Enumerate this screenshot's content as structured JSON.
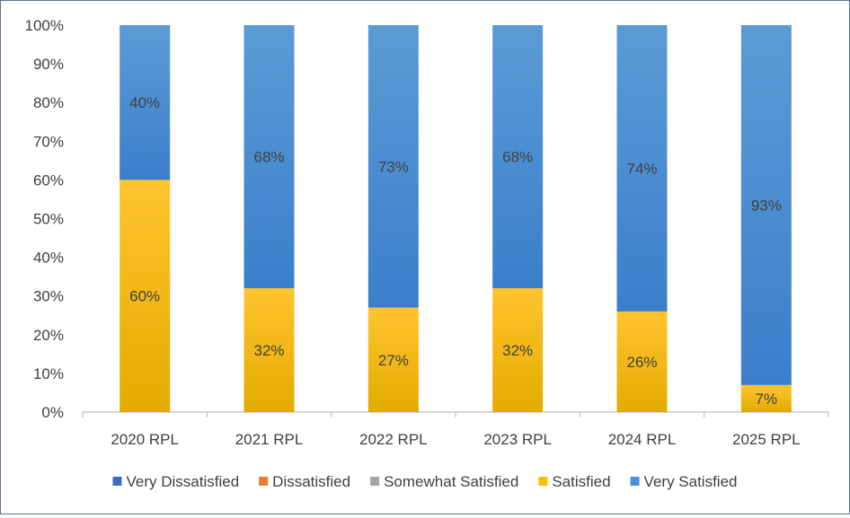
{
  "chart_data": {
    "type": "bar",
    "stacked": true,
    "categories": [
      "2020 RPL",
      "2021 RPL",
      "2022 RPL",
      "2023 RPL",
      "2024 RPL",
      "2025 RPL"
    ],
    "series": [
      {
        "name": "Very Dissatisfied",
        "color": "#3e6cc0",
        "values": [
          0,
          0,
          0,
          0,
          0,
          0
        ],
        "labels": [
          "",
          "",
          "",
          "",
          "",
          ""
        ]
      },
      {
        "name": "Dissatisfied",
        "color": "#ed7d31",
        "values": [
          0,
          0,
          0,
          0,
          0,
          0
        ],
        "labels": [
          "",
          "",
          "",
          "",
          "",
          ""
        ]
      },
      {
        "name": "Somewhat Satisfied",
        "color": "#a5a5a5",
        "values": [
          0,
          0,
          0,
          0,
          0,
          0
        ],
        "labels": [
          "",
          "",
          "",
          "",
          "",
          ""
        ]
      },
      {
        "name": "Satisfied",
        "color": "#ffc000",
        "values": [
          60,
          32,
          27,
          32,
          26,
          7
        ],
        "labels": [
          "60%",
          "32%",
          "27%",
          "32%",
          "26%",
          "7%"
        ]
      },
      {
        "name": "Very Satisfied",
        "color": "#4a8fd6",
        "values": [
          40,
          68,
          73,
          68,
          74,
          93
        ],
        "labels": [
          "40%",
          "68%",
          "73%",
          "68%",
          "74%",
          "93%"
        ]
      }
    ],
    "yticks": [
      "0%",
      "10%",
      "20%",
      "30%",
      "40%",
      "50%",
      "60%",
      "70%",
      "80%",
      "90%",
      "100%"
    ],
    "ylim": [
      0,
      100
    ],
    "grid": false,
    "legend_position": "bottom"
  }
}
